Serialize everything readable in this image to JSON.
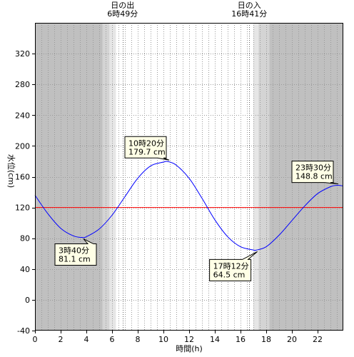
{
  "chart_data": {
    "type": "line",
    "xlabel": "時間(h)",
    "ylabel": "水位(cm)",
    "xlim": [
      0,
      24
    ],
    "ylim": [
      -40,
      360
    ],
    "x_ticks": [
      0,
      2,
      4,
      6,
      8,
      10,
      12,
      14,
      16,
      18,
      20,
      22
    ],
    "y_ticks": [
      -40,
      0,
      40,
      80,
      120,
      160,
      200,
      240,
      280,
      320
    ],
    "reference_line": {
      "y": 120,
      "color": "#ff0000"
    },
    "line_color": "#0000ff",
    "sun": {
      "rise": {
        "label": "日の出",
        "time_label": "6時49分",
        "hour": 6.817
      },
      "set": {
        "label": "日の入",
        "time_label": "16時41分",
        "hour": 16.683
      }
    },
    "twilight": [
      {
        "from": 0,
        "to": 5.25,
        "shade": "#c0c0c0"
      },
      {
        "from": 5.25,
        "to": 5.8,
        "shade": "#d4d4d4"
      },
      {
        "from": 5.8,
        "to": 6.3,
        "shade": "#e6e6e6"
      },
      {
        "from": 17.0,
        "to": 17.4,
        "shade": "#e6e6e6"
      },
      {
        "from": 17.4,
        "to": 18.25,
        "shade": "#d4d4d4"
      },
      {
        "from": 18.25,
        "to": 24,
        "shade": "#c0c0c0"
      }
    ],
    "series": [
      {
        "x": [
          0,
          1,
          2,
          3,
          3.667,
          4,
          5,
          6,
          7,
          8,
          9,
          10,
          10.333,
          11,
          12,
          13,
          14,
          15,
          16,
          17,
          17.2,
          18,
          19,
          20,
          21,
          22,
          23,
          23.5,
          24
        ],
        "y": [
          136,
          112,
          93,
          83,
          81.1,
          82,
          92,
          110,
          134,
          158,
          174,
          179,
          179.7,
          175,
          158,
          132,
          104,
          82,
          69,
          64.8,
          64.5,
          69,
          84,
          103,
          122,
          138,
          147,
          148.8,
          148
        ]
      }
    ],
    "annotations": [
      {
        "time": "3時40分",
        "value": "81.1 cm",
        "x": 3.667,
        "y": 81.1
      },
      {
        "time": "10時20分",
        "value": "179.7 cm",
        "x": 10.333,
        "y": 179.7
      },
      {
        "time": "17時12分",
        "value": "64.5 cm",
        "x": 17.2,
        "y": 64.5
      },
      {
        "time": "23時30分",
        "value": "148.8 cm",
        "x": 23.5,
        "y": 148.8
      }
    ]
  }
}
